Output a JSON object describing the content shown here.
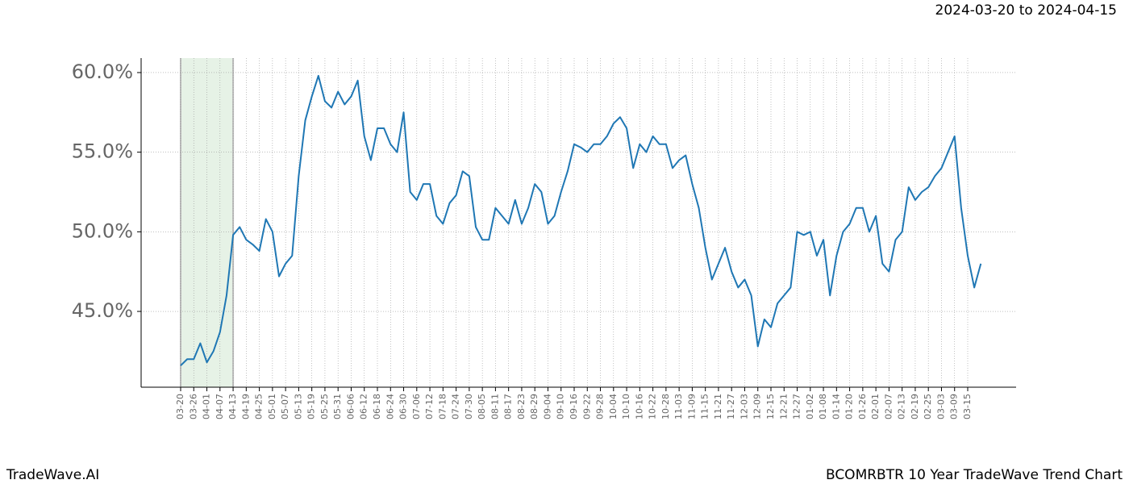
{
  "header": {
    "range": "2024-03-20 to 2024-04-15"
  },
  "footer": {
    "left": "TradeWave.AI",
    "right": "BCOMRBTR 10 Year TradeWave Trend Chart"
  },
  "chart_data": {
    "type": "line",
    "categories": [
      "03-20",
      null,
      "03-26",
      null,
      "04-01",
      null,
      "04-07",
      null,
      "04-13",
      null,
      "04-19",
      null,
      "04-25",
      null,
      "05-01",
      null,
      "05-07",
      null,
      "05-13",
      null,
      "05-19",
      null,
      "05-25",
      null,
      "05-31",
      null,
      "06-06",
      null,
      "06-12",
      null,
      "06-18",
      null,
      "06-24",
      null,
      "06-30",
      null,
      "07-06",
      null,
      "07-12",
      null,
      "07-18",
      null,
      "07-24",
      null,
      "07-30",
      null,
      "08-05",
      null,
      "08-11",
      null,
      "08-17",
      null,
      "08-23",
      null,
      "08-29",
      null,
      "09-04",
      null,
      "09-10",
      null,
      "09-16",
      null,
      "09-22",
      null,
      "09-28",
      null,
      "10-04",
      null,
      "10-10",
      null,
      "10-16",
      null,
      "10-22",
      null,
      "10-28",
      null,
      "11-03",
      null,
      "11-09",
      null,
      "11-15",
      null,
      "11-21",
      null,
      "11-27",
      null,
      "12-03",
      null,
      "12-09",
      null,
      "12-15",
      null,
      "12-21",
      null,
      "12-27",
      null,
      "01-02",
      null,
      "01-08",
      null,
      "01-14",
      null,
      "01-20",
      null,
      "01-26",
      null,
      "02-01",
      null,
      "02-07",
      null,
      "02-13",
      null,
      "02-19",
      null,
      "02-25",
      null,
      "03-03",
      null,
      "03-09",
      null,
      "03-15",
      null,
      null
    ],
    "series": [
      {
        "color": "#1f77b4",
        "values": [
          41.6,
          42.0,
          42.0,
          43.0,
          41.8,
          42.5,
          43.7,
          46.0,
          49.8,
          50.3,
          49.5,
          49.2,
          48.8,
          50.8,
          50.0,
          47.2,
          48.0,
          48.5,
          53.5,
          57.0,
          58.5,
          59.8,
          58.2,
          57.8,
          58.8,
          58.0,
          58.5,
          59.5,
          56.0,
          54.5,
          56.5,
          56.5,
          55.5,
          55.0,
          57.5,
          52.5,
          52.0,
          53.0,
          53.0,
          51.0,
          50.5,
          51.8,
          52.3,
          53.8,
          53.5,
          50.3,
          49.5,
          49.5,
          51.5,
          51.0,
          50.5,
          52.0,
          50.5,
          51.5,
          53.0,
          52.5,
          50.5,
          51.0,
          52.5,
          53.8,
          55.5,
          55.3,
          55.0,
          55.5,
          55.5,
          56.0,
          56.8,
          57.2,
          56.5,
          54.0,
          55.5,
          55.0,
          56.0,
          55.5,
          55.5,
          54.0,
          54.5,
          54.8,
          53.0,
          51.5,
          49.0,
          47.0,
          48.0,
          49.0,
          47.5,
          46.5,
          47.0,
          46.0,
          42.8,
          44.5,
          44.0,
          45.5,
          46.0,
          46.5,
          50.0,
          49.8,
          50.0,
          48.5,
          49.5,
          46.0,
          48.5,
          50.0,
          50.5,
          51.5,
          51.5,
          50.0,
          51.0,
          48.0,
          47.5,
          49.5,
          50.0,
          52.8,
          52.0,
          52.5,
          52.8,
          53.5,
          54.0,
          55.0,
          56.0,
          51.5,
          48.5,
          46.5,
          48.0
        ]
      }
    ],
    "ylim": [
      40.24,
      60.91
    ],
    "yticks": [
      {
        "value": 45,
        "label": "45.0%"
      },
      {
        "value": 50,
        "label": "50.0%"
      },
      {
        "value": 55,
        "label": "55.0%"
      },
      {
        "value": 60,
        "label": "60.0%"
      }
    ],
    "grid": true,
    "highlight": {
      "from": "03-20",
      "to": "04-13",
      "color": "#e6f2e6"
    }
  }
}
